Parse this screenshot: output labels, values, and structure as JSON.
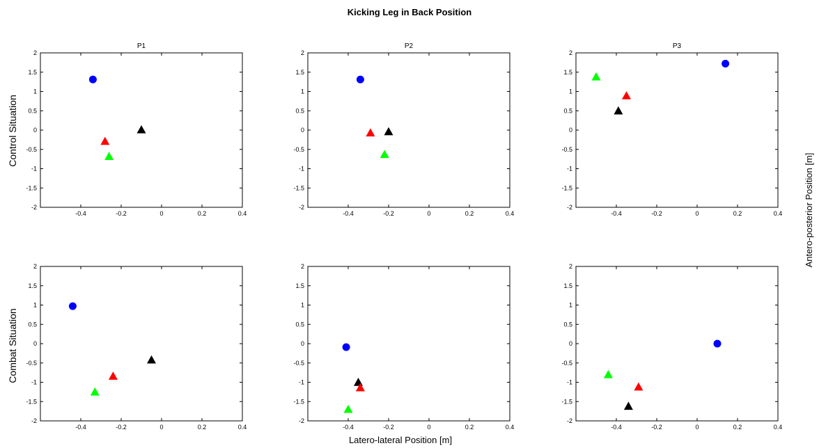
{
  "figure_title": "Kicking Leg in Back Position",
  "xlabel": "Latero-lateral Position [m]",
  "ylabel": "Antero-posterior Position [m]",
  "row_labels": [
    "Control Situation",
    "Combat Situation"
  ],
  "colors": {
    "blue": "#0000ff",
    "red": "#ff0000",
    "green": "#00ff00",
    "black": "#000000"
  },
  "chart_data": [
    {
      "type": "scatter",
      "title": "P1",
      "row": 0,
      "col": 0,
      "xlim": [
        -0.6,
        0.4
      ],
      "ylim": [
        -2,
        2
      ],
      "xticks": [
        -0.4,
        -0.2,
        0,
        0.2,
        0.4
      ],
      "yticks": [
        -2,
        -1.5,
        -1,
        -0.5,
        0,
        0.5,
        1,
        1.5,
        2
      ],
      "grid": false,
      "points": [
        {
          "color": "blue",
          "marker": "circle",
          "x": -0.34,
          "y": 1.31
        },
        {
          "color": "black",
          "marker": "triangle",
          "x": -0.1,
          "y": 0.01
        },
        {
          "color": "red",
          "marker": "triangle",
          "x": -0.28,
          "y": -0.29
        },
        {
          "color": "green",
          "marker": "triangle",
          "x": -0.26,
          "y": -0.68
        }
      ]
    },
    {
      "type": "scatter",
      "title": "P2",
      "row": 0,
      "col": 1,
      "xlim": [
        -0.6,
        0.4
      ],
      "ylim": [
        -2,
        2
      ],
      "xticks": [
        -0.4,
        -0.2,
        0,
        0.2,
        0.4
      ],
      "yticks": [
        -2,
        -1.5,
        -1,
        -0.5,
        0,
        0.5,
        1,
        1.5,
        2
      ],
      "grid": false,
      "points": [
        {
          "color": "blue",
          "marker": "circle",
          "x": -0.34,
          "y": 1.31
        },
        {
          "color": "black",
          "marker": "triangle",
          "x": -0.2,
          "y": -0.04
        },
        {
          "color": "red",
          "marker": "triangle",
          "x": -0.29,
          "y": -0.07
        },
        {
          "color": "green",
          "marker": "triangle",
          "x": -0.22,
          "y": -0.63
        }
      ]
    },
    {
      "type": "scatter",
      "title": "P3",
      "row": 0,
      "col": 2,
      "xlim": [
        -0.6,
        0.4
      ],
      "ylim": [
        -2,
        2
      ],
      "xticks": [
        -0.4,
        -0.2,
        0,
        0.2,
        0.4
      ],
      "yticks": [
        -2,
        -1.5,
        -1,
        -0.5,
        0,
        0.5,
        1,
        1.5,
        2
      ],
      "grid": false,
      "points": [
        {
          "color": "blue",
          "marker": "circle",
          "x": 0.14,
          "y": 1.72
        },
        {
          "color": "green",
          "marker": "triangle",
          "x": -0.5,
          "y": 1.38
        },
        {
          "color": "red",
          "marker": "triangle",
          "x": -0.35,
          "y": 0.89
        },
        {
          "color": "black",
          "marker": "triangle",
          "x": -0.39,
          "y": 0.5
        }
      ]
    },
    {
      "type": "scatter",
      "title": "",
      "row": 1,
      "col": 0,
      "xlim": [
        -0.6,
        0.4
      ],
      "ylim": [
        -2,
        2
      ],
      "xticks": [
        -0.4,
        -0.2,
        0,
        0.2,
        0.4
      ],
      "yticks": [
        -2,
        -1.5,
        -1,
        -0.5,
        0,
        0.5,
        1,
        1.5,
        2
      ],
      "grid": false,
      "points": [
        {
          "color": "blue",
          "marker": "circle",
          "x": -0.44,
          "y": 0.97
        },
        {
          "color": "black",
          "marker": "triangle",
          "x": -0.05,
          "y": -0.42
        },
        {
          "color": "red",
          "marker": "triangle",
          "x": -0.24,
          "y": -0.84
        },
        {
          "color": "green",
          "marker": "triangle",
          "x": -0.33,
          "y": -1.25
        }
      ]
    },
    {
      "type": "scatter",
      "title": "",
      "row": 1,
      "col": 1,
      "xlim": [
        -0.6,
        0.4
      ],
      "ylim": [
        -2,
        2
      ],
      "xticks": [
        -0.4,
        -0.2,
        0,
        0.2,
        0.4
      ],
      "yticks": [
        -2,
        -1.5,
        -1,
        -0.5,
        0,
        0.5,
        1,
        1.5,
        2
      ],
      "grid": false,
      "points": [
        {
          "color": "blue",
          "marker": "circle",
          "x": -0.41,
          "y": -0.09
        },
        {
          "color": "black",
          "marker": "triangle",
          "x": -0.35,
          "y": -1.0
        },
        {
          "color": "red",
          "marker": "triangle",
          "x": -0.34,
          "y": -1.14
        },
        {
          "color": "green",
          "marker": "triangle",
          "x": -0.4,
          "y": -1.7
        }
      ]
    },
    {
      "type": "scatter",
      "title": "",
      "row": 1,
      "col": 2,
      "xlim": [
        -0.6,
        0.4
      ],
      "ylim": [
        -2,
        2
      ],
      "xticks": [
        -0.4,
        -0.2,
        0,
        0.2,
        0.4
      ],
      "yticks": [
        -2,
        -1.5,
        -1,
        -0.5,
        0,
        0.5,
        1,
        1.5,
        2
      ],
      "grid": false,
      "points": [
        {
          "color": "blue",
          "marker": "circle",
          "x": 0.1,
          "y": 0.0
        },
        {
          "color": "green",
          "marker": "triangle",
          "x": -0.44,
          "y": -0.8
        },
        {
          "color": "red",
          "marker": "triangle",
          "x": -0.29,
          "y": -1.12
        },
        {
          "color": "black",
          "marker": "triangle",
          "x": -0.34,
          "y": -1.62
        }
      ]
    }
  ]
}
